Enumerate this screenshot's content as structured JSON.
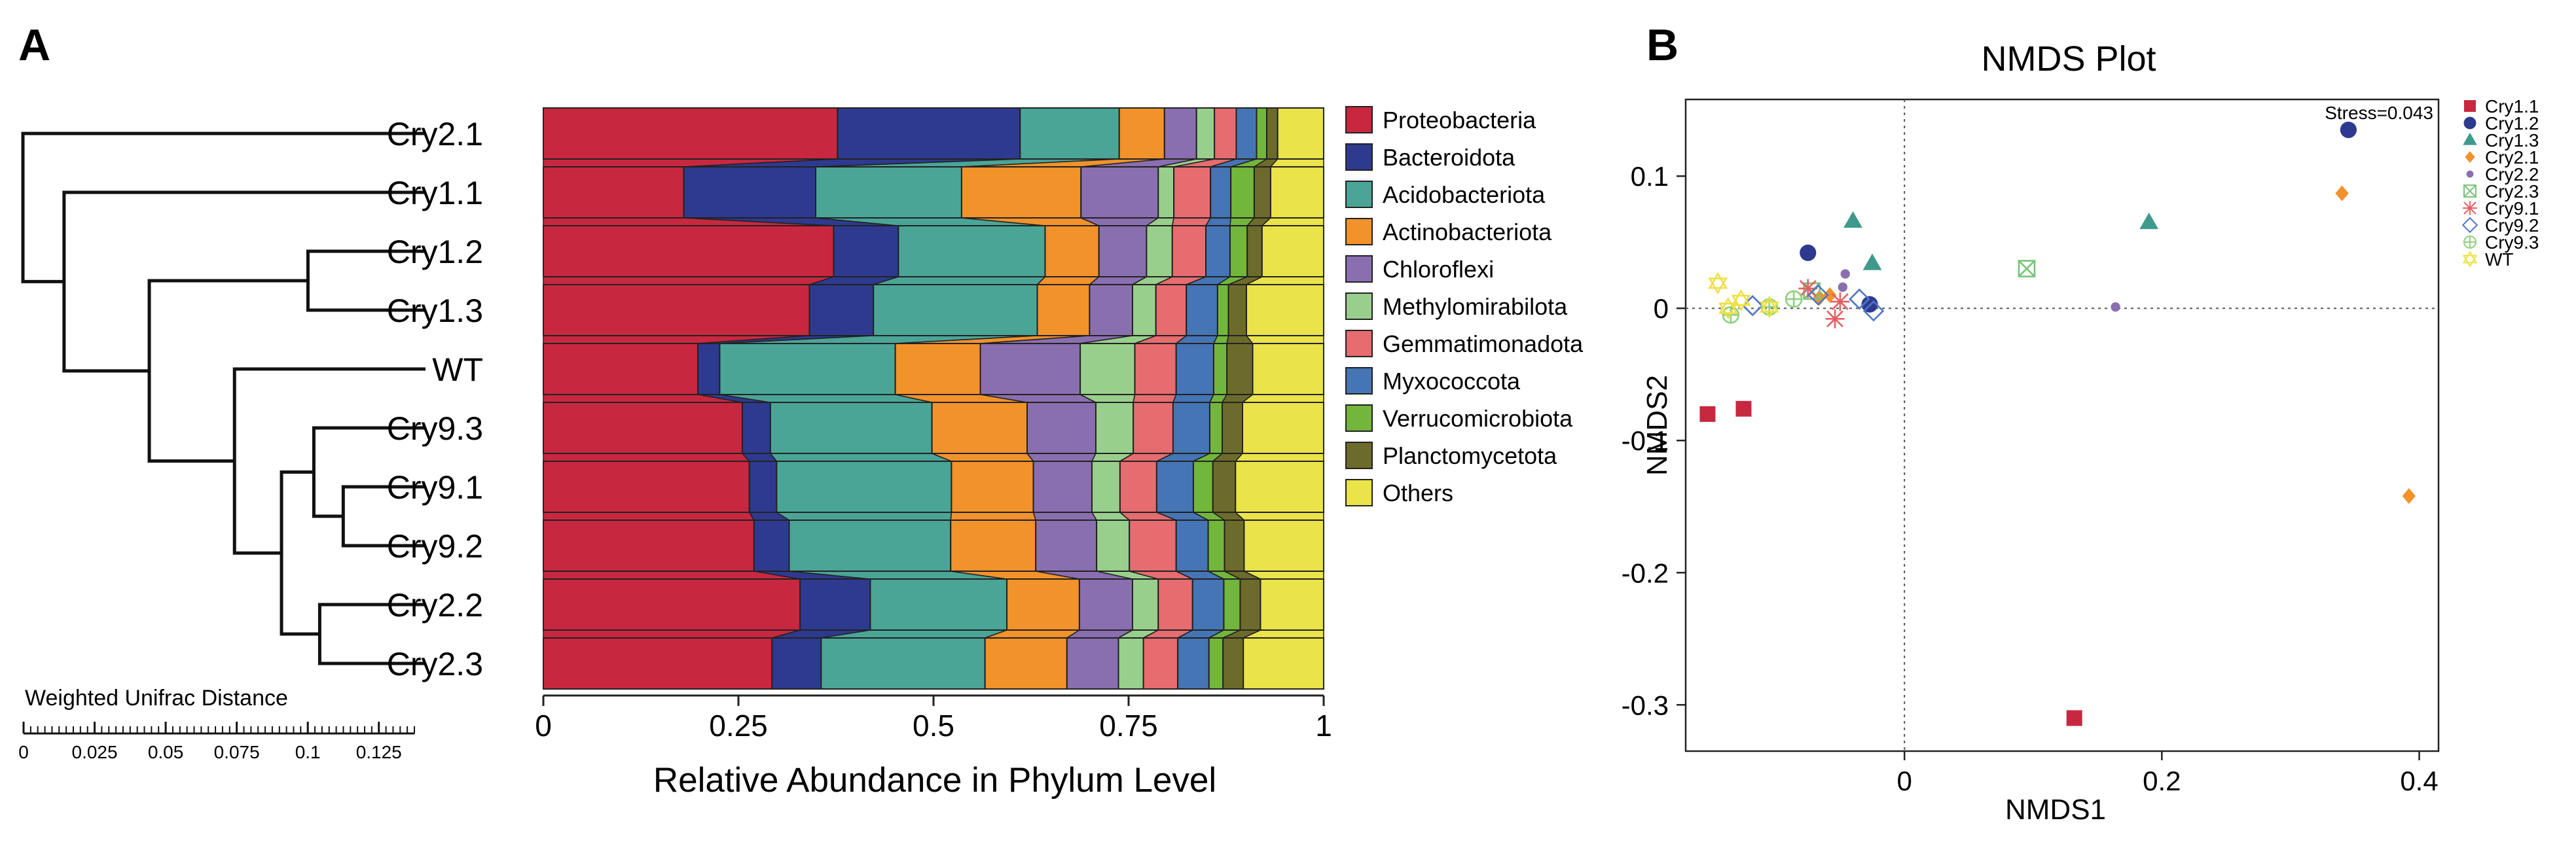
{
  "panels": {
    "a_label": "A",
    "b_label": "B"
  },
  "colors": {
    "Proteobacteria": "#c8283f",
    "Bacteroidota": "#2e3a8f",
    "Acidobacteriota": "#4aa597",
    "Actinobacteriota": "#f2922b",
    "Chloroflexi": "#8a6fb0",
    "Methylomirabilota": "#98cf8c",
    "Gemmatimonadota": "#e66c6f",
    "Myxococcota": "#4575b4",
    "Verrucomicrobiota": "#72b63c",
    "Planctomycetota": "#6d6b2b",
    "Others": "#eae34a"
  },
  "chart_data": [
    {
      "type": "dendrogram",
      "title": "",
      "xlabel": "Weighted Unifrac Distance",
      "scale_ticks": [
        "0",
        "0.025",
        "0.05",
        "0.075",
        "0.1",
        "0.125"
      ],
      "scale_tick_values": [
        0,
        0.025,
        0.05,
        0.075,
        0.1,
        0.125
      ],
      "scale_max": 0.137,
      "leaves": [
        "Cry2.1",
        "Cry1.1",
        "Cry1.2",
        "Cry1.3",
        "WT",
        "Cry9.3",
        "Cry9.1",
        "Cry9.2",
        "Cry2.2",
        "Cry2.3"
      ],
      "merges": [
        {
          "a": "Cry1.2",
          "b": "Cry1.3",
          "height": 0.04
        },
        {
          "a": "Cry9.1",
          "b": "Cry9.2",
          "height": 0.028
        },
        {
          "a": "Cry9.3",
          "b": "Cry9.1+Cry9.2",
          "height": 0.038
        },
        {
          "a": "Cry2.2",
          "b": "Cry2.3",
          "height": 0.036
        },
        {
          "a": "Cry9.3+Cry9.1+Cry9.2",
          "b": "Cry2.2+Cry2.3",
          "height": 0.049
        },
        {
          "a": "WT",
          "b": "Cry9.x+Cry2.2+Cry2.3",
          "height": 0.065
        },
        {
          "a": "Cry1.2+Cry1.3",
          "b": "WT+Cry9.x+Cry2.2+Cry2.3",
          "height": 0.094
        },
        {
          "a": "Cry1.1",
          "b": "Cry1.2..Cry2.3",
          "height": 0.123
        },
        {
          "a": "Cry2.1",
          "b": "Cry1.1..Cry2.3",
          "height": 0.137
        }
      ]
    },
    {
      "type": "bar",
      "stacked": true,
      "orientation": "horizontal",
      "title": "",
      "xlabel": "Relative Abundance in Phylum Level",
      "ylabel": "",
      "xlim": [
        0,
        1
      ],
      "xticks": [
        "0",
        "0.25",
        "0.5",
        "0.75",
        "1"
      ],
      "xtick_values": [
        0,
        0.25,
        0.5,
        0.75,
        1
      ],
      "categories": [
        "Cry2.1",
        "Cry1.1",
        "Cry1.2",
        "Cry1.3",
        "WT",
        "Cry9.3",
        "Cry9.1",
        "Cry9.2",
        "Cry2.2",
        "Cry2.3"
      ],
      "legend_position": "right",
      "series": [
        {
          "name": "Proteobacteria",
          "values": [
            0.377,
            0.18,
            0.372,
            0.341,
            0.198,
            0.255,
            0.264,
            0.27,
            0.329,
            0.293
          ]
        },
        {
          "name": "Bacteroidota",
          "values": [
            0.234,
            0.169,
            0.083,
            0.082,
            0.028,
            0.036,
            0.035,
            0.045,
            0.09,
            0.063
          ]
        },
        {
          "name": "Acidobacteriota",
          "values": [
            0.127,
            0.187,
            0.188,
            0.21,
            0.225,
            0.207,
            0.224,
            0.207,
            0.175,
            0.21
          ]
        },
        {
          "name": "Actinobacteriota",
          "values": [
            0.058,
            0.153,
            0.069,
            0.067,
            0.109,
            0.122,
            0.105,
            0.109,
            0.093,
            0.105
          ]
        },
        {
          "name": "Chloroflexi",
          "values": [
            0.041,
            0.099,
            0.061,
            0.055,
            0.128,
            0.088,
            0.075,
            0.078,
            0.068,
            0.066
          ]
        },
        {
          "name": "Methylomirabilota",
          "values": [
            0.023,
            0.02,
            0.033,
            0.03,
            0.07,
            0.048,
            0.036,
            0.042,
            0.033,
            0.032
          ]
        },
        {
          "name": "Gemmatimonadota",
          "values": [
            0.028,
            0.047,
            0.043,
            0.039,
            0.053,
            0.051,
            0.047,
            0.06,
            0.044,
            0.044
          ]
        },
        {
          "name": "Myxococcota",
          "values": [
            0.026,
            0.026,
            0.031,
            0.04,
            0.048,
            0.047,
            0.047,
            0.041,
            0.04,
            0.04
          ]
        },
        {
          "name": "Verrucomicrobiota",
          "values": [
            0.013,
            0.03,
            0.022,
            0.014,
            0.017,
            0.016,
            0.025,
            0.021,
            0.021,
            0.018
          ]
        },
        {
          "name": "Planctomycetota",
          "values": [
            0.014,
            0.021,
            0.019,
            0.023,
            0.033,
            0.026,
            0.029,
            0.025,
            0.026,
            0.026
          ]
        },
        {
          "name": "Others",
          "values": [
            0.059,
            0.068,
            0.079,
            0.099,
            0.091,
            0.104,
            0.113,
            0.102,
            0.081,
            0.103
          ]
        }
      ]
    },
    {
      "type": "scatter",
      "title": "NMDS Plot",
      "xlabel": "NMDS1",
      "ylabel": "NMDS2",
      "xlim": [
        -0.17,
        0.415
      ],
      "ylim": [
        -0.335,
        0.158
      ],
      "xticks": [
        0,
        0.2,
        0.4
      ],
      "xtick_labels": [
        "0",
        "0.2",
        "0.4"
      ],
      "yticks": [
        0.1,
        0,
        -0.1,
        -0.2,
        -0.3
      ],
      "ytick_labels": [
        "0.1",
        "0",
        "-0.1",
        "-0.2",
        "-0.3"
      ],
      "reference_lines": {
        "x": 0,
        "y": 0
      },
      "annotation": "Stress=0.043",
      "legend_position": "right",
      "series": [
        {
          "name": "Cry1.1",
          "marker": "square",
          "color": "#c8283f",
          "points": [
            [
              -0.153,
              -0.08
            ],
            [
              -0.125,
              -0.076
            ],
            [
              0.132,
              -0.31
            ]
          ]
        },
        {
          "name": "Cry1.2",
          "marker": "circle",
          "color": "#2e3a8f",
          "points": [
            [
              -0.075,
              0.042
            ],
            [
              -0.027,
              0.003
            ],
            [
              0.345,
              0.135
            ]
          ]
        },
        {
          "name": "Cry1.3",
          "marker": "triangle",
          "color": "#3f9a8c",
          "points": [
            [
              -0.04,
              0.066
            ],
            [
              -0.025,
              0.034
            ],
            [
              0.19,
              0.065
            ]
          ]
        },
        {
          "name": "Cry2.1",
          "marker": "diamond",
          "color": "#f2922b",
          "points": [
            [
              -0.066,
              0.008
            ],
            [
              -0.058,
              0.01
            ],
            [
              0.34,
              0.087
            ],
            [
              0.392,
              -0.142
            ]
          ]
        },
        {
          "name": "Cry2.2",
          "marker": "dot",
          "color": "#8a6fb0",
          "points": [
            [
              -0.046,
              0.026
            ],
            [
              -0.048,
              0.016
            ],
            [
              0.164,
              0.001
            ]
          ]
        },
        {
          "name": "Cry2.3",
          "marker": "boxx",
          "color": "#79c37a",
          "points": [
            [
              0.095,
              0.03
            ],
            [
              -0.072,
              0.013
            ]
          ]
        },
        {
          "name": "Cry9.1",
          "marker": "asterisk",
          "color": "#e45f63",
          "points": [
            [
              -0.075,
              0.015
            ],
            [
              -0.054,
              -0.008
            ],
            [
              -0.05,
              0.005
            ]
          ]
        },
        {
          "name": "Cry9.2",
          "marker": "diamond-open",
          "color": "#5076c8",
          "points": [
            [
              -0.118,
              0.002
            ],
            [
              -0.035,
              0.007
            ],
            [
              -0.024,
              -0.002
            ],
            [
              -0.067,
              0.01
            ]
          ]
        },
        {
          "name": "Cry9.3",
          "marker": "circle-cross",
          "color": "#8fd07f",
          "points": [
            [
              -0.135,
              -0.005
            ],
            [
              -0.105,
              0.001
            ],
            [
              -0.086,
              0.007
            ]
          ]
        },
        {
          "name": "WT",
          "marker": "star-david",
          "color": "#eee044",
          "points": [
            [
              -0.145,
              0.019
            ],
            [
              -0.137,
              0.0
            ],
            [
              -0.127,
              0.006
            ],
            [
              -0.105,
              0.001
            ]
          ]
        }
      ]
    }
  ]
}
